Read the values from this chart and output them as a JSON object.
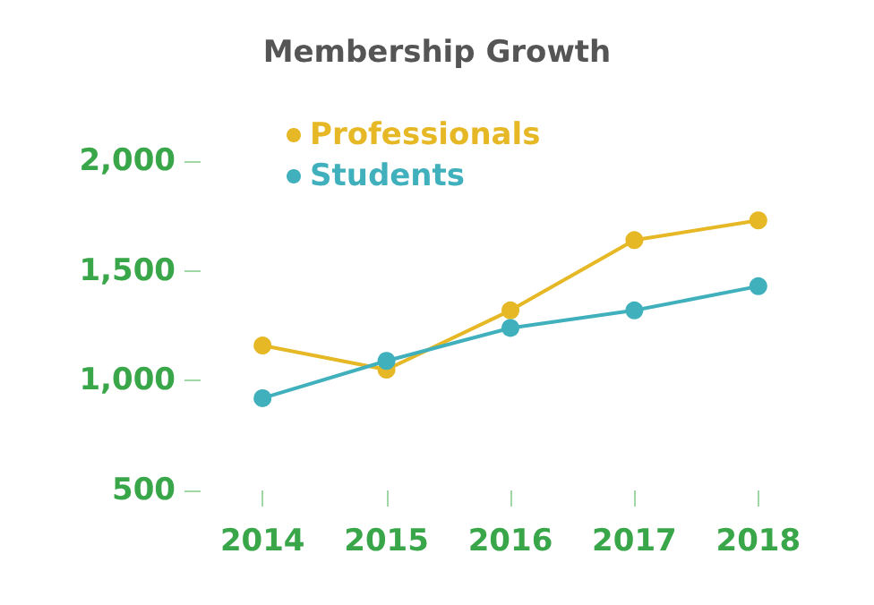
{
  "chart_data": {
    "type": "line",
    "title": "Membership Growth",
    "categories": [
      "2014",
      "2015",
      "2016",
      "2017",
      "2018"
    ],
    "series": [
      {
        "name": "Professionals",
        "color": "#e6b825",
        "values": [
          1160,
          1050,
          1320,
          1640,
          1730
        ]
      },
      {
        "name": "Students",
        "color": "#40b0bd",
        "values": [
          920,
          1090,
          1240,
          1320,
          1430
        ]
      }
    ],
    "ylim": [
      500,
      2000
    ],
    "yticks": [
      {
        "value": 500,
        "label": "500"
      },
      {
        "value": 1000,
        "label": "1,000"
      },
      {
        "value": 1500,
        "label": "1,500"
      },
      {
        "value": 2000,
        "label": "2,000"
      }
    ],
    "grid": false,
    "legend": "top left",
    "marker": "circle",
    "line_style": "solid"
  }
}
